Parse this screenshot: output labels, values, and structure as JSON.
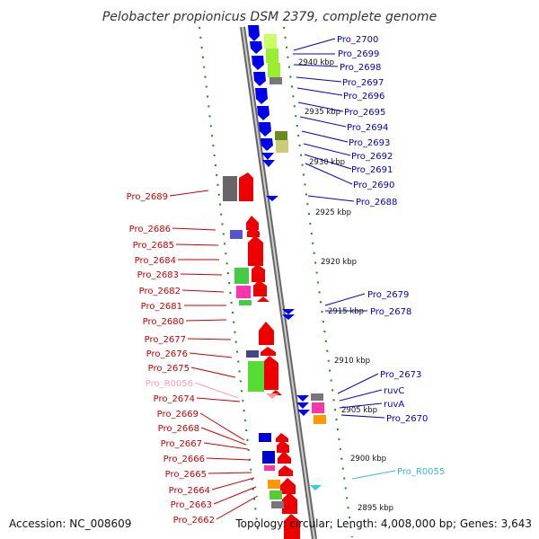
{
  "header": {
    "title": "Pelobacter propionicus DSM 2379, complete genome"
  },
  "footer": {
    "accession": "Accession: NC_008609",
    "summary": "Topology: circular; Length: 4,008,000 bp; Genes: 3,643"
  },
  "colors": {
    "forward_strand_genes": "#0000ee",
    "reverse_strand_genes": "#ee0000",
    "trna": "#ff9999",
    "trna_forward": "#33ccee",
    "backbone": "#888888",
    "orf_cog_green": "#99ee33",
    "orf_cog_pink": "#ff33aa",
    "orf_cog_purple": "#5555aa",
    "orf_cog_orange": "#ff9900"
  },
  "kbp_ticks": [
    "2940 kbp",
    "2935 kbp",
    "2930 kbp",
    "2925 kbp",
    "2920 kbp",
    "2915 kbp",
    "2910 kbp",
    "2905 kbp",
    "2900 kbp",
    "2895 kbp"
  ],
  "right_labels": [
    {
      "text": "Pro_2700",
      "color": "#0000cc"
    },
    {
      "text": "Pro_2699",
      "color": "#0000cc"
    },
    {
      "text": "Pro_2698",
      "color": "#0000cc"
    },
    {
      "text": "Pro_2697",
      "color": "#0000cc"
    },
    {
      "text": "Pro_2696",
      "color": "#0000cc"
    },
    {
      "text": "Pro_2695",
      "color": "#0000cc"
    },
    {
      "text": "Pro_2694",
      "color": "#0000cc"
    },
    {
      "text": "Pro_2693",
      "color": "#0000cc"
    },
    {
      "text": "Pro_2692",
      "color": "#0000cc"
    },
    {
      "text": "Pro_2691",
      "color": "#0000cc"
    },
    {
      "text": "Pro_2690",
      "color": "#0000cc"
    },
    {
      "text": "Pro_2688",
      "color": "#0000cc"
    },
    {
      "text": "Pro_2679",
      "color": "#0000cc"
    },
    {
      "text": "Pro_2678",
      "color": "#0000cc"
    },
    {
      "text": "Pro_2673",
      "color": "#0000cc"
    },
    {
      "text": "ruvC",
      "color": "#0000cc"
    },
    {
      "text": "ruvA",
      "color": "#0000cc"
    },
    {
      "text": "Pro_2670",
      "color": "#0000cc"
    },
    {
      "text": "Pro_R0055",
      "color": "#33bbdd"
    }
  ],
  "left_labels": [
    {
      "text": "Pro_2689",
      "color": "#cc0000"
    },
    {
      "text": "Pro_2686",
      "color": "#cc0000"
    },
    {
      "text": "Pro_2685",
      "color": "#cc0000"
    },
    {
      "text": "Pro_2684",
      "color": "#cc0000"
    },
    {
      "text": "Pro_2683",
      "color": "#cc0000"
    },
    {
      "text": "Pro_2682",
      "color": "#cc0000"
    },
    {
      "text": "Pro_2681",
      "color": "#cc0000"
    },
    {
      "text": "Pro_2680",
      "color": "#cc0000"
    },
    {
      "text": "Pro_2677",
      "color": "#cc0000"
    },
    {
      "text": "Pro_2676",
      "color": "#cc0000"
    },
    {
      "text": "Pro_2675",
      "color": "#cc0000"
    },
    {
      "text": "Pro_R0056",
      "color": "#ff99bb"
    },
    {
      "text": "Pro_2674",
      "color": "#cc0000"
    },
    {
      "text": "Pro_2669",
      "color": "#cc0000"
    },
    {
      "text": "Pro_2668",
      "color": "#cc0000"
    },
    {
      "text": "Pro_2667",
      "color": "#cc0000"
    },
    {
      "text": "Pro_2666",
      "color": "#cc0000"
    },
    {
      "text": "Pro_2665",
      "color": "#cc0000"
    },
    {
      "text": "Pro_2664",
      "color": "#cc0000"
    },
    {
      "text": "Pro_2663",
      "color": "#cc0000"
    },
    {
      "text": "Pro_2662",
      "color": "#cc0000"
    }
  ]
}
